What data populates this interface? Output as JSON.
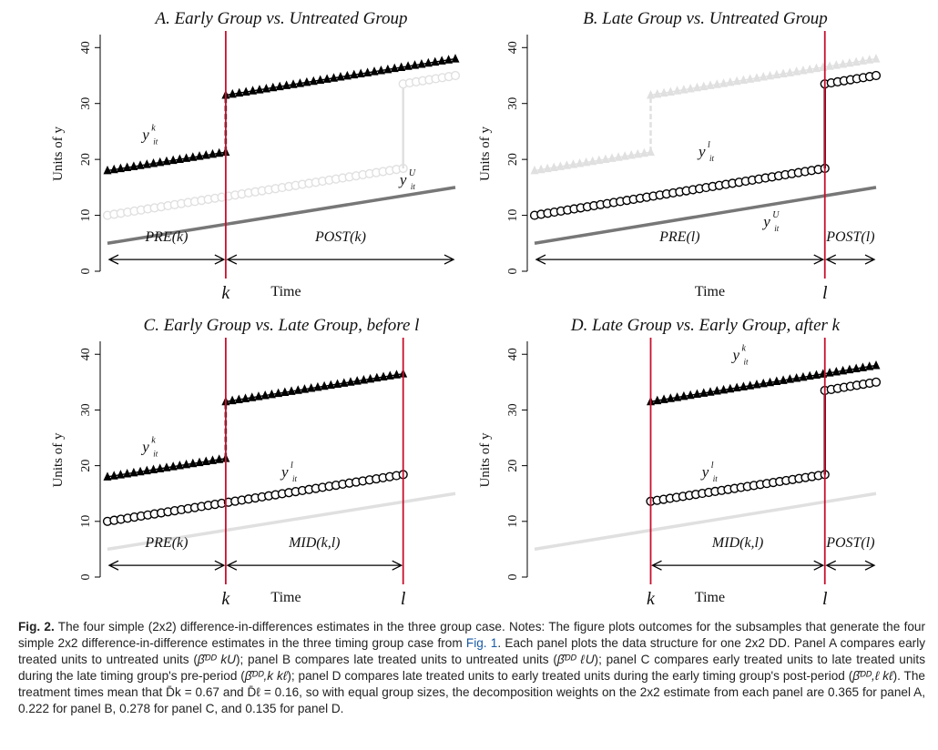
{
  "figure": {
    "x_axis_title": "Time",
    "y_axis_title": "Units of y",
    "ymin": 0,
    "ymax": 42,
    "yticks": [
      0,
      10,
      20,
      30,
      40
    ],
    "t_min": 0,
    "t_max": 100,
    "early_treatment_time_label": "k",
    "late_treatment_time_label": "l",
    "colors": {
      "treat_line": "#c8102e",
      "early": "#000000",
      "late": "#000000",
      "untreated": "#777777",
      "faded": "#e0e0e0"
    }
  },
  "chart_data": [
    {
      "type": "line",
      "panel": "A",
      "title": "A. Early Group vs. Untreated Group",
      "xlabel": "Time",
      "ylabel": "Units of y",
      "ylim": [
        0,
        42
      ],
      "treatment_times": [
        34
      ],
      "time_tick_labels": [
        "k"
      ],
      "series": [
        {
          "name": "y it k",
          "group": "early",
          "style": "triangles",
          "faded": false,
          "points": [
            [
              0,
              18
            ],
            [
              34,
              21.3
            ],
            [
              34,
              31.5
            ],
            [
              100,
              38
            ]
          ]
        },
        {
          "name": "y it U",
          "group": "untreated",
          "style": "gray line",
          "faded": false,
          "points": [
            [
              0,
              5
            ],
            [
              100,
              15
            ]
          ]
        },
        {
          "name": "",
          "group": "late",
          "style": "circles",
          "faded": true,
          "points": [
            [
              0,
              10
            ],
            [
              85,
              18.4
            ],
            [
              85,
              33.5
            ],
            [
              100,
              35
            ]
          ]
        }
      ],
      "series_labels": [
        {
          "main": "y",
          "sup": "k",
          "sub": "it",
          "series_group": "early"
        },
        {
          "main": "y",
          "sup": "U",
          "sub": "it",
          "series_group": "untreated"
        }
      ],
      "period_arrows": [
        {
          "label": "PRE(k)",
          "from": 0,
          "to": 34
        },
        {
          "label": "POST(k)",
          "from": 34,
          "to": 100
        }
      ]
    },
    {
      "type": "line",
      "panel": "B",
      "title": "B. Late Group vs. Untreated Group",
      "xlabel": "Time",
      "ylabel": "Units of y",
      "ylim": [
        0,
        42
      ],
      "treatment_times": [
        85
      ],
      "time_tick_labels": [
        "l"
      ],
      "series": [
        {
          "name": "y it l",
          "group": "late",
          "style": "circles",
          "faded": false,
          "points": [
            [
              0,
              10
            ],
            [
              85,
              18.4
            ],
            [
              85,
              33.5
            ],
            [
              100,
              35
            ]
          ]
        },
        {
          "name": "y it U",
          "group": "untreated",
          "style": "gray line",
          "faded": false,
          "points": [
            [
              0,
              5
            ],
            [
              100,
              15
            ]
          ]
        },
        {
          "name": "",
          "group": "early",
          "style": "triangles",
          "faded": true,
          "points": [
            [
              0,
              18
            ],
            [
              34,
              21.3
            ],
            [
              34,
              31.5
            ],
            [
              100,
              38
            ]
          ]
        }
      ],
      "series_labels": [
        {
          "main": "y",
          "sup": "l",
          "sub": "it",
          "series_group": "late"
        },
        {
          "main": "y",
          "sup": "U",
          "sub": "it",
          "series_group": "untreated"
        }
      ],
      "period_arrows": [
        {
          "label": "PRE(l)",
          "from": 0,
          "to": 85
        },
        {
          "label": "POST(l)",
          "from": 85,
          "to": 100
        }
      ]
    },
    {
      "type": "line",
      "panel": "C",
      "title": "C. Early Group vs. Late Group, before l",
      "xlabel": "Time",
      "ylabel": "Units of y",
      "ylim": [
        0,
        42
      ],
      "treatment_times": [
        34,
        85
      ],
      "time_tick_labels": [
        "k",
        "l"
      ],
      "series": [
        {
          "name": "y it k",
          "group": "early",
          "style": "triangles",
          "faded": false,
          "points": [
            [
              0,
              18
            ],
            [
              34,
              21.3
            ],
            [
              34,
              31.5
            ],
            [
              85,
              36.5
            ]
          ]
        },
        {
          "name": "y it l",
          "group": "late",
          "style": "circles",
          "faded": false,
          "points": [
            [
              0,
              10
            ],
            [
              85,
              18.4
            ]
          ]
        },
        {
          "name": "",
          "group": "untreated",
          "style": "gray line",
          "faded": true,
          "points": [
            [
              0,
              5
            ],
            [
              100,
              15
            ]
          ]
        }
      ],
      "series_labels": [
        {
          "main": "y",
          "sup": "k",
          "sub": "it",
          "series_group": "early"
        },
        {
          "main": "y",
          "sup": "l",
          "sub": "it",
          "series_group": "late"
        }
      ],
      "period_arrows": [
        {
          "label": "PRE(k)",
          "from": 0,
          "to": 34
        },
        {
          "label": "MID(k,l)",
          "from": 34,
          "to": 85
        }
      ]
    },
    {
      "type": "line",
      "panel": "D",
      "title": "D. Late Group vs. Early Group, after k",
      "xlabel": "Time",
      "ylabel": "Units of y",
      "ylim": [
        0,
        42
      ],
      "treatment_times": [
        34,
        85
      ],
      "time_tick_labels": [
        "k",
        "l"
      ],
      "series": [
        {
          "name": "y it k",
          "group": "early",
          "style": "triangles",
          "faded": false,
          "points": [
            [
              34,
              31.5
            ],
            [
              100,
              38
            ]
          ]
        },
        {
          "name": "y it l",
          "group": "late",
          "style": "circles",
          "faded": false,
          "points": [
            [
              34,
              13.6
            ],
            [
              85,
              18.4
            ],
            [
              85,
              33.5
            ],
            [
              100,
              35
            ]
          ]
        },
        {
          "name": "",
          "group": "untreated",
          "style": "gray line",
          "faded": true,
          "points": [
            [
              0,
              5
            ],
            [
              100,
              15
            ]
          ]
        }
      ],
      "series_labels": [
        {
          "main": "y",
          "sup": "k",
          "sub": "it",
          "series_group": "early"
        },
        {
          "main": "y",
          "sup": "l",
          "sub": "it",
          "series_group": "late"
        }
      ],
      "period_arrows": [
        {
          "label": "MID(k,l)",
          "from": 34,
          "to": 85
        },
        {
          "label": "POST(l)",
          "from": 85,
          "to": 100
        }
      ]
    }
  ],
  "caption": {
    "label": "Fig. 2.",
    "part1": " The four simple (2x2) difference-in-differences estimates in the three group case. Notes: The figure plots outcomes for the subsamples that generate the four simple 2x2 difference-in-difference estimates in the three timing group case from ",
    "fig_ref": "Fig. 1",
    "part2": ". Each panel plots the data structure for one 2x2 DD. Panel A compares early treated units to untreated units (",
    "est_a": "β̂ᴰᴰ kU",
    "part3": "); panel B compares late treated units to untreated units (",
    "est_b": "β̂ᴰᴰ ℓU",
    "part4": "); panel C compares early treated units to late treated units during the late timing group's pre-period (",
    "est_c": "β̂ᴰᴰ,k kℓ",
    "part5": "); panel D compares late treated units to early treated units during the early timing group's post-period (",
    "est_d": "β̂ᴰᴰ,ℓ kℓ",
    "part6": "). The treatment times mean that D̄k = 0.67 and D̄ℓ = 0.16, so with equal group sizes, the decomposition weights on the 2x2 estimate from each panel are 0.365 for panel A, 0.222 for panel B, 0.278 for panel C, and 0.135 for panel D."
  }
}
